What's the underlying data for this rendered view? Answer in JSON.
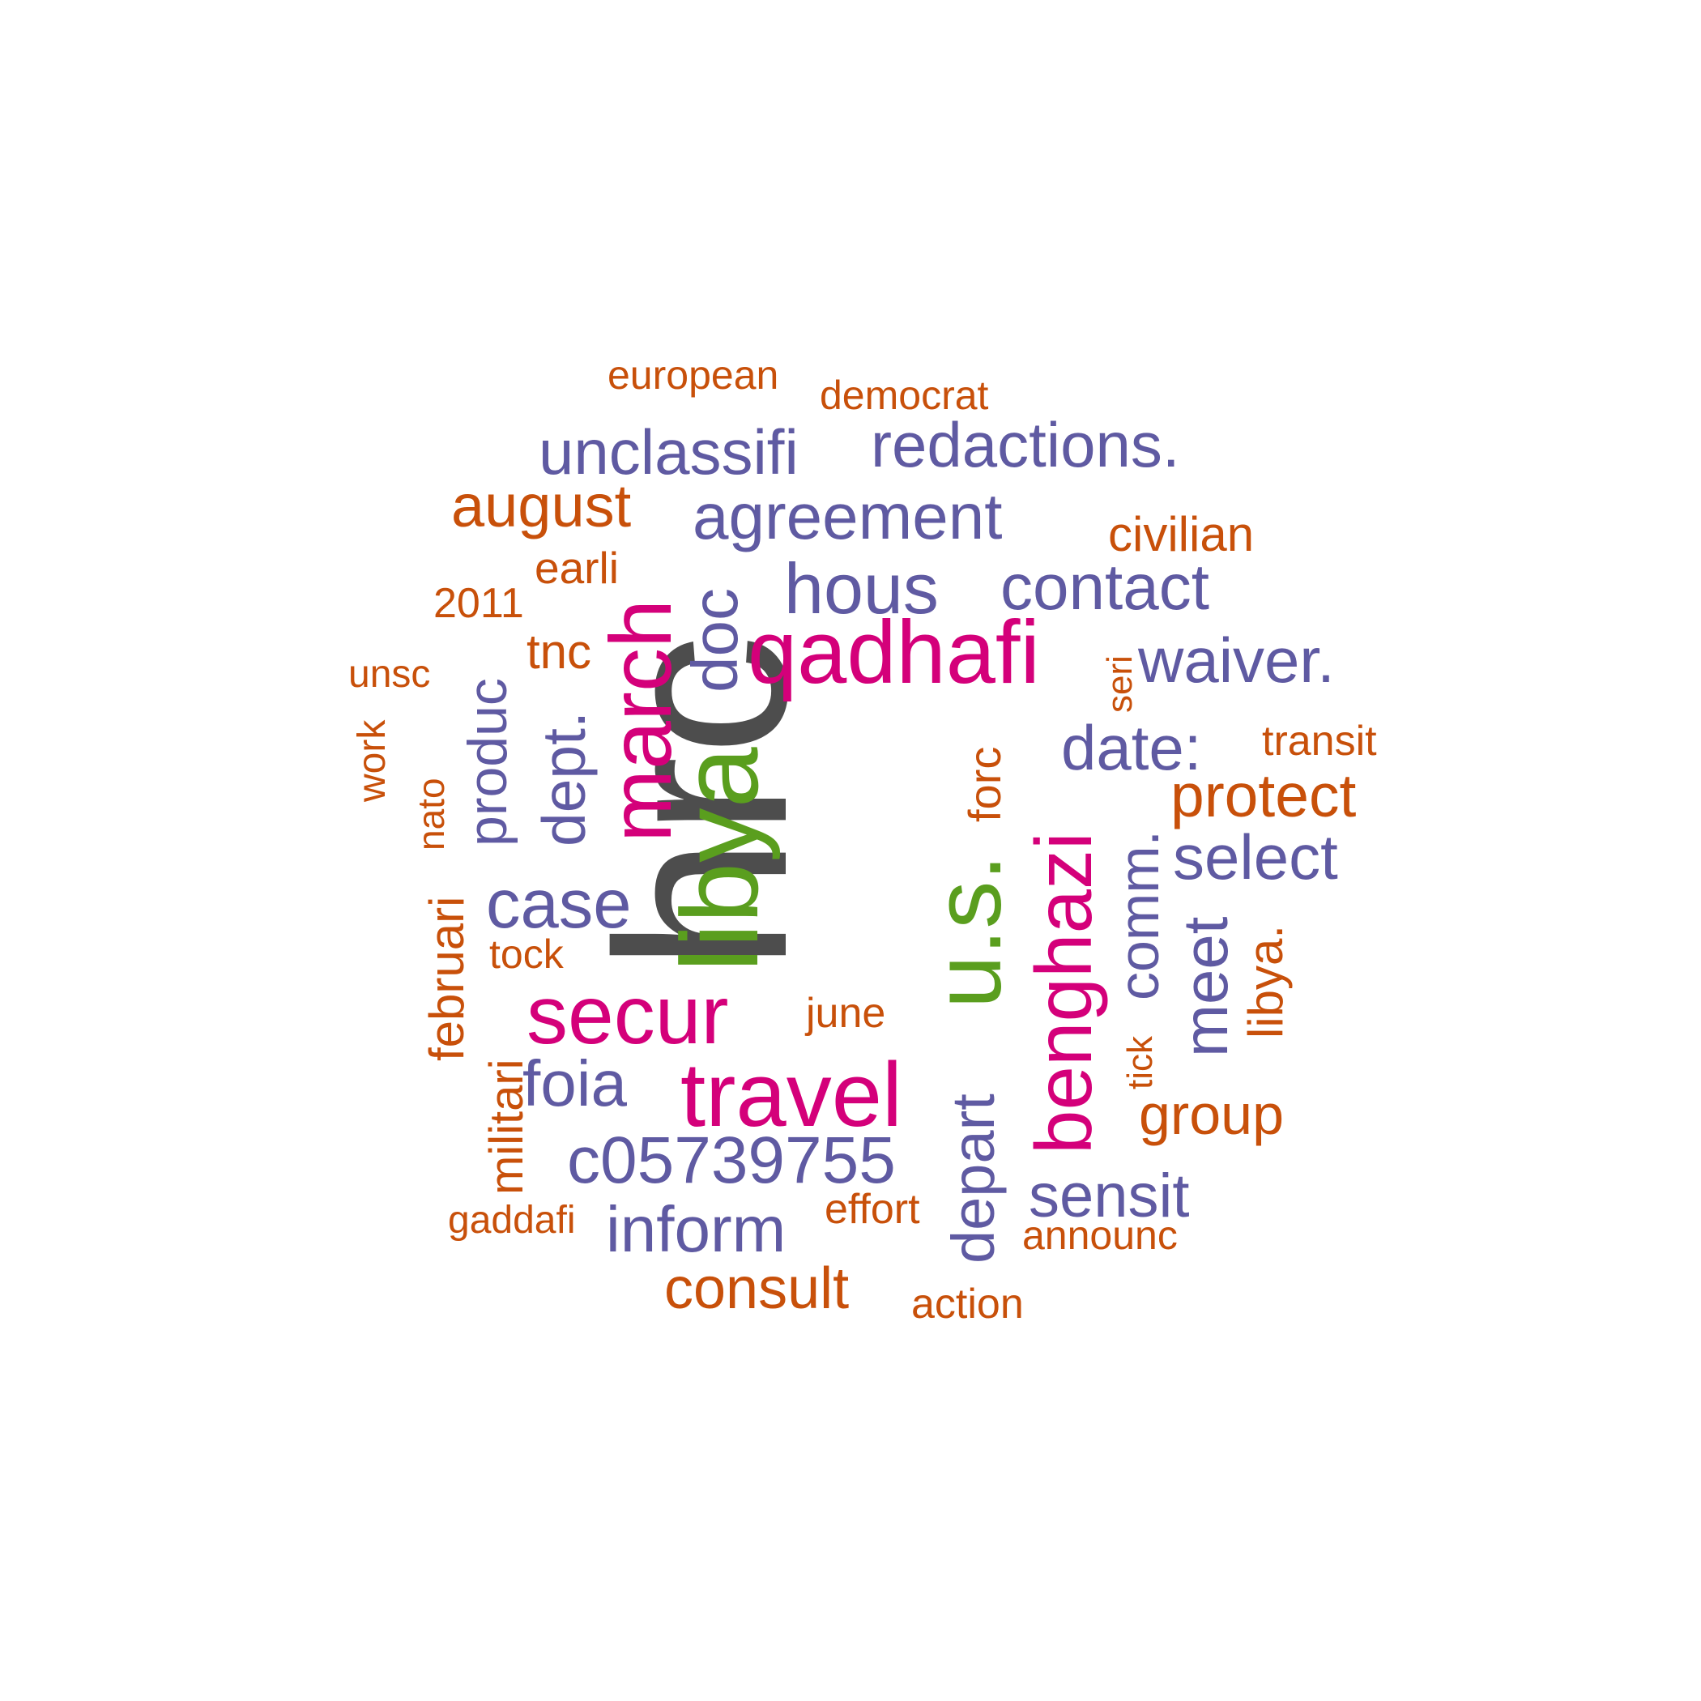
{
  "palette": {
    "dark": "#4d4d4d",
    "green": "#5a9e1e",
    "magenta": "#d4007a",
    "purple": "#5f5aa2",
    "orange": "#c8500a"
  },
  "words": [
    {
      "text": "hrc",
      "color": "dark"
    },
    {
      "text": "libya",
      "color": "green"
    },
    {
      "text": "u.s.",
      "color": "green"
    },
    {
      "text": "qadhafi",
      "color": "magenta"
    },
    {
      "text": "secur",
      "color": "magenta"
    },
    {
      "text": "travel",
      "color": "magenta"
    },
    {
      "text": "march",
      "color": "magenta"
    },
    {
      "text": "benghazi",
      "color": "magenta"
    },
    {
      "text": "unclassifi",
      "color": "purple"
    },
    {
      "text": "redactions.",
      "color": "purple"
    },
    {
      "text": "agreement",
      "color": "purple"
    },
    {
      "text": "hous",
      "color": "purple"
    },
    {
      "text": "contact",
      "color": "purple"
    },
    {
      "text": "waiver.",
      "color": "purple"
    },
    {
      "text": "date:",
      "color": "purple"
    },
    {
      "text": "select",
      "color": "purple"
    },
    {
      "text": "case",
      "color": "purple"
    },
    {
      "text": "foia",
      "color": "purple"
    },
    {
      "text": "c05739755",
      "color": "purple"
    },
    {
      "text": "inform",
      "color": "purple"
    },
    {
      "text": "sensit",
      "color": "purple"
    },
    {
      "text": "doc",
      "color": "purple"
    },
    {
      "text": "dept.",
      "color": "purple"
    },
    {
      "text": "produc",
      "color": "purple"
    },
    {
      "text": "depart",
      "color": "purple"
    },
    {
      "text": "comm.",
      "color": "purple"
    },
    {
      "text": "meet",
      "color": "purple"
    },
    {
      "text": "european",
      "color": "orange"
    },
    {
      "text": "democrat",
      "color": "orange"
    },
    {
      "text": "august",
      "color": "orange"
    },
    {
      "text": "civilian",
      "color": "orange"
    },
    {
      "text": "earli",
      "color": "orange"
    },
    {
      "text": "2011",
      "color": "orange"
    },
    {
      "text": "tnc",
      "color": "orange"
    },
    {
      "text": "unsc",
      "color": "orange"
    },
    {
      "text": "transit",
      "color": "orange"
    },
    {
      "text": "protect",
      "color": "orange"
    },
    {
      "text": "tock",
      "color": "orange"
    },
    {
      "text": "june",
      "color": "orange"
    },
    {
      "text": "group",
      "color": "orange"
    },
    {
      "text": "gaddafi",
      "color": "orange"
    },
    {
      "text": "effort",
      "color": "orange"
    },
    {
      "text": "announc",
      "color": "orange"
    },
    {
      "text": "consult",
      "color": "orange"
    },
    {
      "text": "action",
      "color": "orange"
    },
    {
      "text": "work",
      "color": "orange"
    },
    {
      "text": "nato",
      "color": "orange"
    },
    {
      "text": "februari",
      "color": "orange"
    },
    {
      "text": "militari",
      "color": "orange"
    },
    {
      "text": "forc",
      "color": "orange"
    },
    {
      "text": "seri",
      "color": "orange"
    },
    {
      "text": "tick",
      "color": "orange"
    },
    {
      "text": "libya.",
      "color": "orange"
    }
  ]
}
